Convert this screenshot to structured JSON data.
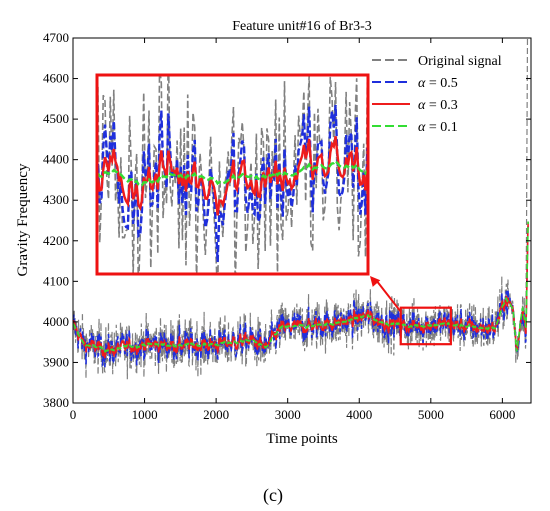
{
  "chart_data": {
    "type": "line",
    "title": "Feature unit#16 of Br3-3",
    "xlabel": "Time points",
    "ylabel": "Gravity Frequency",
    "xlim": [
      0,
      6400
    ],
    "ylim": [
      3800,
      4700
    ],
    "xticks": [
      0,
      1000,
      2000,
      3000,
      4000,
      5000,
      6000
    ],
    "yticks": [
      3800,
      3900,
      4000,
      4100,
      4200,
      4300,
      4400,
      4500,
      4600,
      4700
    ],
    "legend_position": "top-right",
    "series": [
      {
        "name": "Original signal",
        "color": "#808080",
        "dash": "dashed",
        "noise": 45
      },
      {
        "name": "α = 0.5",
        "label_symbol": "α",
        "label_value": "= 0.5",
        "color": "#1f2fdc",
        "dash": "dashed",
        "noise": 28
      },
      {
        "name": "α = 0.3",
        "label_symbol": "α",
        "label_value": "= 0.3",
        "color": "#ee1c1c",
        "dash": "solid",
        "noise": 18
      },
      {
        "name": "α = 0.1",
        "label_symbol": "α",
        "label_value": "= 0.1",
        "color": "#33dd33",
        "dash": "dashed",
        "noise": 8
      }
    ],
    "trend": {
      "x": [
        0,
        150,
        500,
        1000,
        1500,
        2000,
        2500,
        2700,
        2900,
        3300,
        3800,
        4100,
        4300,
        4700,
        5200,
        5700,
        5900,
        6050,
        6150,
        6200,
        6280,
        6330,
        6360
      ],
      "y": [
        3995,
        3945,
        3930,
        3945,
        3942,
        3945,
        3955,
        3935,
        3985,
        3990,
        4000,
        4015,
        4000,
        3990,
        3995,
        3985,
        3985,
        4060,
        4030,
        3925,
        4040,
        3990,
        4250
      ]
    },
    "zoom_region": {
      "x": [
        4580,
        5280
      ],
      "y": [
        3945,
        4035
      ]
    },
    "inset": {
      "description_hidden": true,
      "ylim": [
        3945,
        4035
      ]
    },
    "caption": "(c)"
  }
}
